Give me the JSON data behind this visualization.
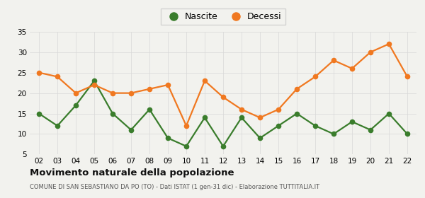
{
  "years": [
    "02",
    "03",
    "04",
    "05",
    "06",
    "07",
    "08",
    "09",
    "10",
    "11",
    "12",
    "13",
    "14",
    "15",
    "16",
    "17",
    "18",
    "19",
    "20",
    "21",
    "22"
  ],
  "nascite": [
    15,
    12,
    17,
    23,
    15,
    11,
    16,
    9,
    7,
    14,
    7,
    14,
    9,
    12,
    15,
    12,
    10,
    13,
    11,
    15,
    10
  ],
  "decessi": [
    25,
    24,
    20,
    22,
    20,
    20,
    21,
    22,
    12,
    23,
    19,
    16,
    14,
    16,
    21,
    24,
    28,
    26,
    30,
    32,
    24
  ],
  "nascite_color": "#3a7d2c",
  "decessi_color": "#f07820",
  "bg_color": "#f2f2ee",
  "grid_color": "#d8d8d8",
  "ylim_min": 5,
  "ylim_max": 35,
  "yticks": [
    5,
    10,
    15,
    20,
    25,
    30,
    35
  ],
  "title": "Movimento naturale della popolazione",
  "subtitle": "COMUNE DI SAN SEBASTIANO DA PO (TO) - Dati ISTAT (1 gen-31 dic) - Elaborazione TUTTITALIA.IT",
  "legend_nascite": "Nascite",
  "legend_decessi": "Decessi",
  "marker_size": 5.5,
  "linewidth": 1.6
}
